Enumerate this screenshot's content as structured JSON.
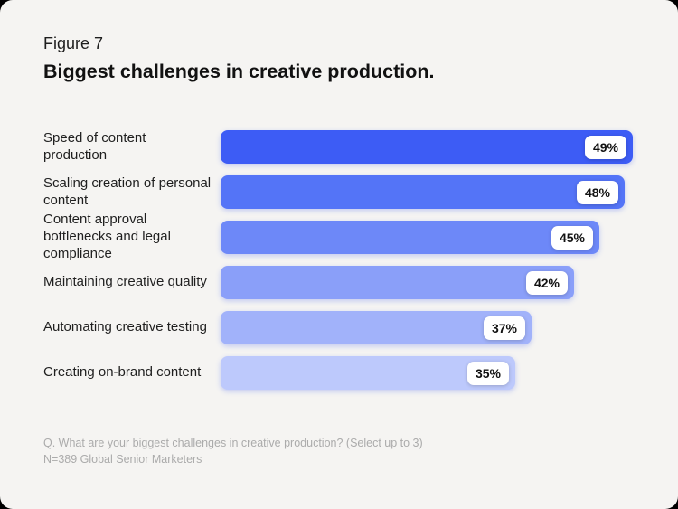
{
  "figure_label": "Figure 7",
  "title": "Biggest challenges in creative production.",
  "footnote": {
    "line1": "Q. What are your biggest challenges in creative production? (Select up to 3)",
    "line2": "N=389 Global Senior Marketers"
  },
  "colors": {
    "page_background": "#000000",
    "card_background": "#F5F4F2",
    "label_text": "#1F1F1F",
    "footnote_text": "#ABABAB",
    "badge_background": "#FFFFFF",
    "badge_text": "#111111"
  },
  "chart_data": {
    "type": "bar",
    "orientation": "horizontal",
    "title": "Biggest challenges in creative production.",
    "categories": [
      "Speed of content production",
      "Scaling creation of personal content",
      "Content approval bottlenecks and legal compliance",
      "Maintaining creative quality",
      "Automating creative testing",
      "Creating on-brand content"
    ],
    "values": [
      49,
      48,
      45,
      42,
      37,
      35
    ],
    "value_labels": [
      "49%",
      "48%",
      "45%",
      "42%",
      "37%",
      "35%"
    ],
    "bar_colors": [
      "#3D5CF5",
      "#5474F7",
      "#6D88F8",
      "#8A9FF9",
      "#A1B2FA",
      "#BDC9FC"
    ],
    "xlim": [
      0,
      49
    ],
    "xlabel": "",
    "ylabel": "",
    "grid": false,
    "legend": false,
    "value_label_style": "white-badge-inside-bar-right"
  }
}
